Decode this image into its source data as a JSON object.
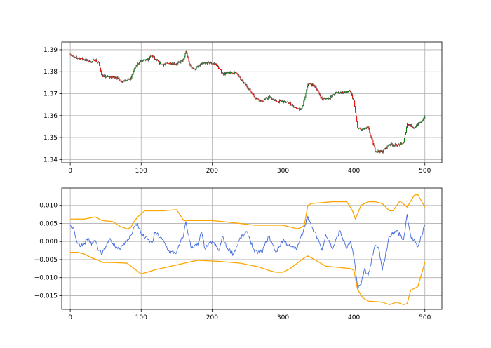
{
  "chart_data": [
    {
      "type": "candlestick",
      "xlim": [
        -12,
        524
      ],
      "ylim": [
        1.3385,
        1.3935
      ],
      "x_ticks": [
        0,
        100,
        200,
        300,
        400,
        500
      ],
      "x_tick_labels": [
        "0",
        "100",
        "200",
        "300",
        "400",
        "500"
      ],
      "y_ticks": [
        1.34,
        1.35,
        1.36,
        1.37,
        1.38,
        1.39
      ],
      "y_tick_labels": [
        "1.34",
        "1.35",
        "1.36",
        "1.37",
        "1.38",
        "1.39"
      ],
      "grid": true,
      "colors": {
        "up": "#008000",
        "down": "#ff0000",
        "wick": "#000000"
      },
      "close_anchors": [
        [
          0,
          1.388
        ],
        [
          2,
          1.3875
        ],
        [
          5,
          1.3865
        ],
        [
          15,
          1.386
        ],
        [
          25,
          1.385
        ],
        [
          30,
          1.3845
        ],
        [
          35,
          1.3855
        ],
        [
          40,
          1.384
        ],
        [
          45,
          1.378
        ],
        [
          55,
          1.3775
        ],
        [
          65,
          1.3775
        ],
        [
          72,
          1.3755
        ],
        [
          80,
          1.3765
        ],
        [
          85,
          1.3765
        ],
        [
          90,
          1.381
        ],
        [
          95,
          1.3835
        ],
        [
          100,
          1.385
        ],
        [
          110,
          1.3855
        ],
        [
          115,
          1.3875
        ],
        [
          120,
          1.3855
        ],
        [
          130,
          1.383
        ],
        [
          140,
          1.384
        ],
        [
          150,
          1.3835
        ],
        [
          160,
          1.3855
        ],
        [
          163,
          1.3895
        ],
        [
          168,
          1.3835
        ],
        [
          175,
          1.381
        ],
        [
          185,
          1.3835
        ],
        [
          195,
          1.384
        ],
        [
          205,
          1.3835
        ],
        [
          215,
          1.379
        ],
        [
          225,
          1.3795
        ],
        [
          235,
          1.3795
        ],
        [
          240,
          1.3765
        ],
        [
          250,
          1.373
        ],
        [
          260,
          1.3685
        ],
        [
          270,
          1.3665
        ],
        [
          280,
          1.3685
        ],
        [
          290,
          1.3665
        ],
        [
          300,
          1.3665
        ],
        [
          310,
          1.3655
        ],
        [
          320,
          1.363
        ],
        [
          325,
          1.3625
        ],
        [
          330,
          1.367
        ],
        [
          335,
          1.3745
        ],
        [
          345,
          1.3735
        ],
        [
          355,
          1.3675
        ],
        [
          365,
          1.368
        ],
        [
          375,
          1.3705
        ],
        [
          385,
          1.3705
        ],
        [
          395,
          1.371
        ],
        [
          400,
          1.3665
        ],
        [
          405,
          1.3545
        ],
        [
          410,
          1.3535
        ],
        [
          420,
          1.3545
        ],
        [
          430,
          1.344
        ],
        [
          440,
          1.3435
        ],
        [
          450,
          1.347
        ],
        [
          460,
          1.3465
        ],
        [
          470,
          1.3475
        ],
        [
          475,
          1.3565
        ],
        [
          485,
          1.3545
        ],
        [
          495,
          1.357
        ],
        [
          500,
          1.3595
        ]
      ]
    },
    {
      "type": "line",
      "xlim": [
        -12,
        524
      ],
      "ylim": [
        -0.0188,
        0.0148
      ],
      "x_ticks": [
        0,
        100,
        200,
        300,
        400,
        500
      ],
      "x_tick_labels": [
        "0",
        "100",
        "200",
        "300",
        "400",
        "500"
      ],
      "y_ticks": [
        -0.015,
        -0.01,
        -0.005,
        0.0,
        0.005,
        0.01
      ],
      "y_tick_labels": [
        "−0.015",
        "−0.010",
        "−0.005",
        "0.000",
        "0.005",
        "0.010"
      ],
      "grid": true,
      "series": [
        {
          "color": "#4169e1",
          "x": [
            0,
            5,
            10,
            15,
            20,
            25,
            30,
            35,
            40,
            45,
            50,
            55,
            60,
            65,
            70,
            75,
            80,
            85,
            90,
            95,
            100,
            110,
            115,
            120,
            130,
            140,
            150,
            160,
            163,
            170,
            180,
            185,
            190,
            200,
            210,
            215,
            220,
            230,
            240,
            250,
            260,
            270,
            280,
            290,
            300,
            310,
            320,
            330,
            335,
            340,
            350,
            355,
            360,
            370,
            380,
            390,
            395,
            400,
            405,
            410,
            415,
            420,
            430,
            435,
            440,
            450,
            460,
            470,
            475,
            480,
            490,
            495,
            500
          ],
          "y": [
            0.0045,
            0.0035,
            -0.0005,
            -0.001,
            -0.0005,
            0.001,
            -0.001,
            0.0005,
            -0.0025,
            -0.0035,
            -0.0015,
            0.0005,
            -0.0005,
            -0.0015,
            -0.002,
            -0.0005,
            0.0,
            0.0015,
            0.004,
            0.005,
            0.002,
            0.0005,
            -0.0005,
            0.0025,
            0.0005,
            -0.003,
            -0.003,
            0.002,
            0.0055,
            -0.0015,
            -0.001,
            0.0025,
            -0.002,
            0.0,
            -0.0025,
            0.0015,
            -0.0015,
            -0.0035,
            0.001,
            0.0025,
            -0.003,
            -0.003,
            0.0015,
            -0.003,
            0.0005,
            -0.0015,
            -0.002,
            0.004,
            0.007,
            0.004,
            0.0005,
            -0.0025,
            0.002,
            -0.002,
            0.003,
            -0.002,
            0.0,
            -0.0045,
            -0.0125,
            -0.012,
            -0.0075,
            -0.0095,
            -0.001,
            -0.002,
            -0.008,
            0.0015,
            0.003,
            0.0005,
            0.0075,
            0.0015,
            -0.0015,
            0.0015,
            0.0045
          ]
        },
        {
          "color": "#ffa500",
          "x": [
            0,
            20,
            35,
            45,
            60,
            70,
            80,
            85,
            90,
            95,
            105,
            130,
            150,
            160,
            170,
            200,
            230,
            260,
            290,
            300,
            320,
            325,
            330,
            335,
            340,
            370,
            390,
            398,
            402,
            410,
            420,
            430,
            440,
            450,
            455,
            465,
            475,
            485,
            490,
            500
          ],
          "y": [
            0.0062,
            0.0062,
            0.0068,
            0.0058,
            0.0055,
            0.0042,
            0.0035,
            0.0038,
            0.0055,
            0.0068,
            0.0085,
            0.0085,
            0.0088,
            0.0058,
            0.0058,
            0.0058,
            0.0052,
            0.0045,
            0.0045,
            0.0045,
            0.0035,
            0.0038,
            0.0045,
            0.01,
            0.0105,
            0.011,
            0.011,
            0.0085,
            0.0062,
            0.01,
            0.011,
            0.011,
            0.0105,
            0.0085,
            0.0085,
            0.0112,
            0.0095,
            0.0128,
            0.013,
            0.0095
          ]
        },
        {
          "color": "#ffa500",
          "x": [
            0,
            10,
            20,
            30,
            40,
            45,
            60,
            80,
            90,
            100,
            120,
            150,
            165,
            180,
            210,
            240,
            265,
            280,
            290,
            300,
            310,
            320,
            330,
            335,
            340,
            360,
            380,
            395,
            400,
            405,
            412,
            420,
            440,
            450,
            460,
            470,
            475,
            480,
            490,
            500
          ],
          "y": [
            -0.003,
            -0.003,
            -0.0035,
            -0.0045,
            -0.0052,
            -0.0058,
            -0.0058,
            -0.006,
            -0.0075,
            -0.009,
            -0.0078,
            -0.0065,
            -0.0058,
            -0.0052,
            -0.0055,
            -0.006,
            -0.007,
            -0.008,
            -0.0085,
            -0.0085,
            -0.0075,
            -0.006,
            -0.0045,
            -0.004,
            -0.0045,
            -0.0068,
            -0.0072,
            -0.0075,
            -0.008,
            -0.0132,
            -0.0155,
            -0.0165,
            -0.0168,
            -0.0175,
            -0.0168,
            -0.0175,
            -0.0172,
            -0.0135,
            -0.0125,
            -0.0058
          ]
        }
      ]
    }
  ]
}
